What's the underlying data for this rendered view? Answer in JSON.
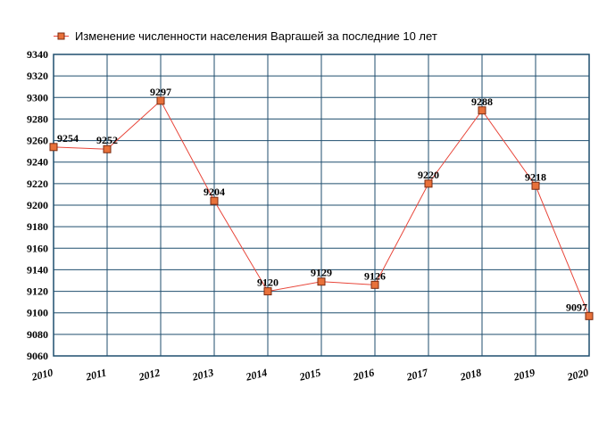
{
  "chart_data": {
    "type": "line",
    "title": "",
    "xlabel": "",
    "ylabel": "",
    "x": [
      "2010",
      "2011",
      "2012",
      "2013",
      "2014",
      "2015",
      "2016",
      "2017",
      "2018",
      "2019",
      "2020"
    ],
    "series": [
      {
        "name": "Изменение численности населения Варгашей за последние 10 лет",
        "values": [
          9254,
          9252,
          9297,
          9204,
          9120,
          9129,
          9126,
          9220,
          9288,
          9218,
          9097
        ],
        "color": "#e8463a"
      }
    ],
    "ylim": [
      9060,
      9340
    ],
    "yticks": [
      9060,
      9080,
      9100,
      9120,
      9140,
      9160,
      9180,
      9200,
      9220,
      9240,
      9260,
      9280,
      9300,
      9320,
      9340
    ],
    "grid": true,
    "legend_position": "top",
    "grid_color": "#1f4e6e",
    "marker_fill": "#e8713a",
    "marker_stroke": "#7a2a10"
  }
}
